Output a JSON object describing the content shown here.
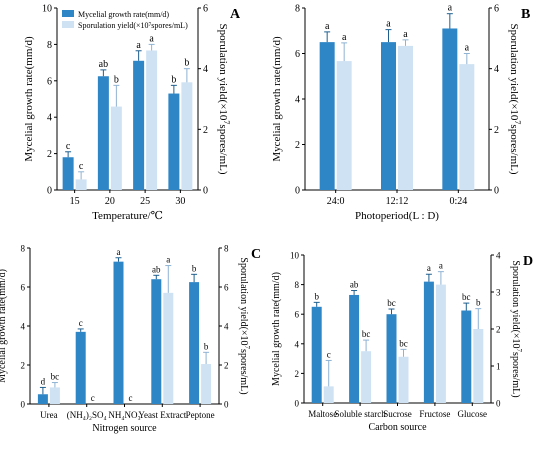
{
  "colors": {
    "growth": "#2f86c6",
    "spore": "#cfe2f3",
    "axis": "#000000"
  },
  "panels": [
    {
      "id": "A",
      "panel_label": "A",
      "xlabel": "Temperature/℃",
      "ylabel_left": "Mycelial growth rate(mm/d)",
      "ylabel_right_parts": [
        "Sporulation yield(×10",
        "7",
        "spores/mL)"
      ],
      "legend": [
        "Mycelial growth rate(mm/d)",
        "Sporulation yield(×10⁷spores/mL)"
      ],
      "left_ticks": [
        "0",
        "2",
        "4",
        "6",
        "8",
        "10"
      ],
      "right_ticks": [
        "0",
        "2",
        "4",
        "6"
      ],
      "x_tick_labels": [
        "15",
        "20",
        "25",
        "30"
      ]
    },
    {
      "id": "B",
      "panel_label": "B",
      "xlabel": "Photoperiod(L : D)",
      "ylabel_left": "Mycelial growth rate(mm/d)",
      "ylabel_right_parts": [
        "Sporulation yield(×10",
        "7",
        "spores/mL)"
      ],
      "left_ticks": [
        "0",
        "2",
        "4",
        "6",
        "8"
      ],
      "right_ticks": [
        "0",
        "2",
        "4",
        "6"
      ],
      "x_tick_labels": [
        "24:0",
        "12:12",
        "0:24"
      ]
    },
    {
      "id": "C",
      "panel_label": "C",
      "xlabel": "Nitrogen source",
      "ylabel_left": "Mycelial growth rate(mm/d)",
      "ylabel_right_parts": [
        "Sporulation yield(×10",
        "7",
        "spores/mL)"
      ],
      "left_ticks": [
        "0",
        "2",
        "4",
        "6",
        "8"
      ],
      "right_ticks": [
        "0",
        "2",
        "4",
        "6",
        "8"
      ],
      "x_tick_labels": [
        "Urea",
        "(NH₄)₂SO₄",
        "NH₄NO₃",
        "Yeast Extract",
        "Peptone"
      ]
    },
    {
      "id": "D",
      "panel_label": "D",
      "xlabel": "Carbon source",
      "ylabel_left": "Mycelial growth rate(mm/d)",
      "ylabel_right_parts": [
        "Sporulation yield(×10",
        "7",
        "spores/mL)"
      ],
      "left_ticks": [
        "0",
        "2",
        "4",
        "6",
        "8",
        "10"
      ],
      "right_ticks": [
        "0",
        "1",
        "2",
        "3",
        "4"
      ],
      "x_tick_labels": [
        "Maltose",
        "Soluble starch",
        "Sucrose",
        "Fructose",
        "Glucose"
      ]
    }
  ],
  "chart_data": [
    {
      "type": "bar",
      "panel": "A",
      "categories": [
        "15",
        "20",
        "25",
        "30"
      ],
      "xlabel": "Temperature/℃",
      "ylabel": "Mycelial growth rate(mm/d)",
      "ylabel_right": "Sporulation yield(×10⁷spores/mL)",
      "ylim_left": [
        0,
        10
      ],
      "ylim_right": [
        0,
        6
      ],
      "legend_position": "top-left",
      "series": [
        {
          "name": "Mycelial growth rate(mm/d)",
          "axis": "left",
          "values": [
            1.8,
            6.25,
            7.1,
            5.3
          ],
          "errors": [
            0.3,
            0.35,
            0.55,
            0.45
          ],
          "letters": [
            "c",
            "ab",
            "a",
            "b"
          ]
        },
        {
          "name": "Sporulation yield(×10⁷spores/mL)",
          "axis": "right",
          "values": [
            0.35,
            2.75,
            4.6,
            3.55
          ],
          "errors": [
            0.25,
            0.7,
            0.2,
            0.45
          ],
          "letters": [
            "c",
            "b",
            "a",
            "b"
          ]
        }
      ]
    },
    {
      "type": "bar",
      "panel": "B",
      "categories": [
        "24:0",
        "12:12",
        "0:24"
      ],
      "xlabel": "Photoperiod(L : D)",
      "ylabel": "Mycelial growth rate(mm/d)",
      "ylabel_right": "Sporulation yield(×10⁷spores/mL)",
      "ylim_left": [
        0,
        8
      ],
      "ylim_right": [
        0,
        6
      ],
      "series": [
        {
          "axis": "left",
          "values": [
            6.5,
            6.5,
            7.1
          ],
          "errors": [
            0.45,
            0.55,
            0.65
          ],
          "letters": [
            "a",
            "a",
            "a"
          ]
        },
        {
          "axis": "right",
          "values": [
            4.25,
            4.75,
            4.15
          ],
          "errors": [
            0.6,
            0.2,
            0.35
          ],
          "letters": [
            "a",
            "a",
            "a"
          ]
        }
      ]
    },
    {
      "type": "bar",
      "panel": "C",
      "categories": [
        "Urea",
        "(NH₄)₂SO₄",
        "NH₄NO₃",
        "Yeast Extract",
        "Peptone"
      ],
      "xlabel": "Nitrogen source",
      "ylabel": "Mycelial growth rate(mm/d)",
      "ylabel_right": "Sporulation yield(×10⁷spores/mL)",
      "ylim_left": [
        0,
        8
      ],
      "ylim_right": [
        0,
        8
      ],
      "series": [
        {
          "axis": "left",
          "values": [
            0.5,
            3.7,
            7.3,
            6.4,
            6.25
          ],
          "errors": [
            0.35,
            0.15,
            0.2,
            0.2,
            0.4
          ],
          "letters": [
            "d",
            "c",
            "a",
            "ab",
            "b"
          ]
        },
        {
          "axis": "right",
          "values": [
            0.85,
            0.0,
            0.0,
            5.7,
            2.05
          ],
          "errors": [
            0.25,
            0,
            0,
            1.4,
            0.6
          ],
          "letters": [
            "bc",
            "c",
            "c",
            "a",
            "b"
          ]
        }
      ]
    },
    {
      "type": "bar",
      "panel": "D",
      "categories": [
        "Maltose",
        "Soluble starch",
        "Sucrose",
        "Fructose",
        "Glucose"
      ],
      "xlabel": "Carbon source",
      "ylabel": "Mycelial growth rate(mm/d)",
      "ylabel_right": "Sporulation yield(×10⁷spores/mL)",
      "ylim_left": [
        0,
        10
      ],
      "ylim_right": [
        0,
        4
      ],
      "series": [
        {
          "axis": "left",
          "values": [
            6.5,
            7.3,
            6.0,
            8.2,
            6.25
          ],
          "errors": [
            0.3,
            0.3,
            0.35,
            0.5,
            0.5
          ],
          "letters": [
            "b",
            "ab",
            "bc",
            "a",
            "bc"
          ]
        },
        {
          "axis": "right",
          "values": [
            0.45,
            1.4,
            1.25,
            3.2,
            2.0
          ],
          "errors": [
            0.7,
            0.3,
            0.2,
            0.35,
            0.55
          ],
          "letters": [
            "c",
            "bc",
            "bc",
            "a",
            "b"
          ]
        }
      ]
    }
  ]
}
